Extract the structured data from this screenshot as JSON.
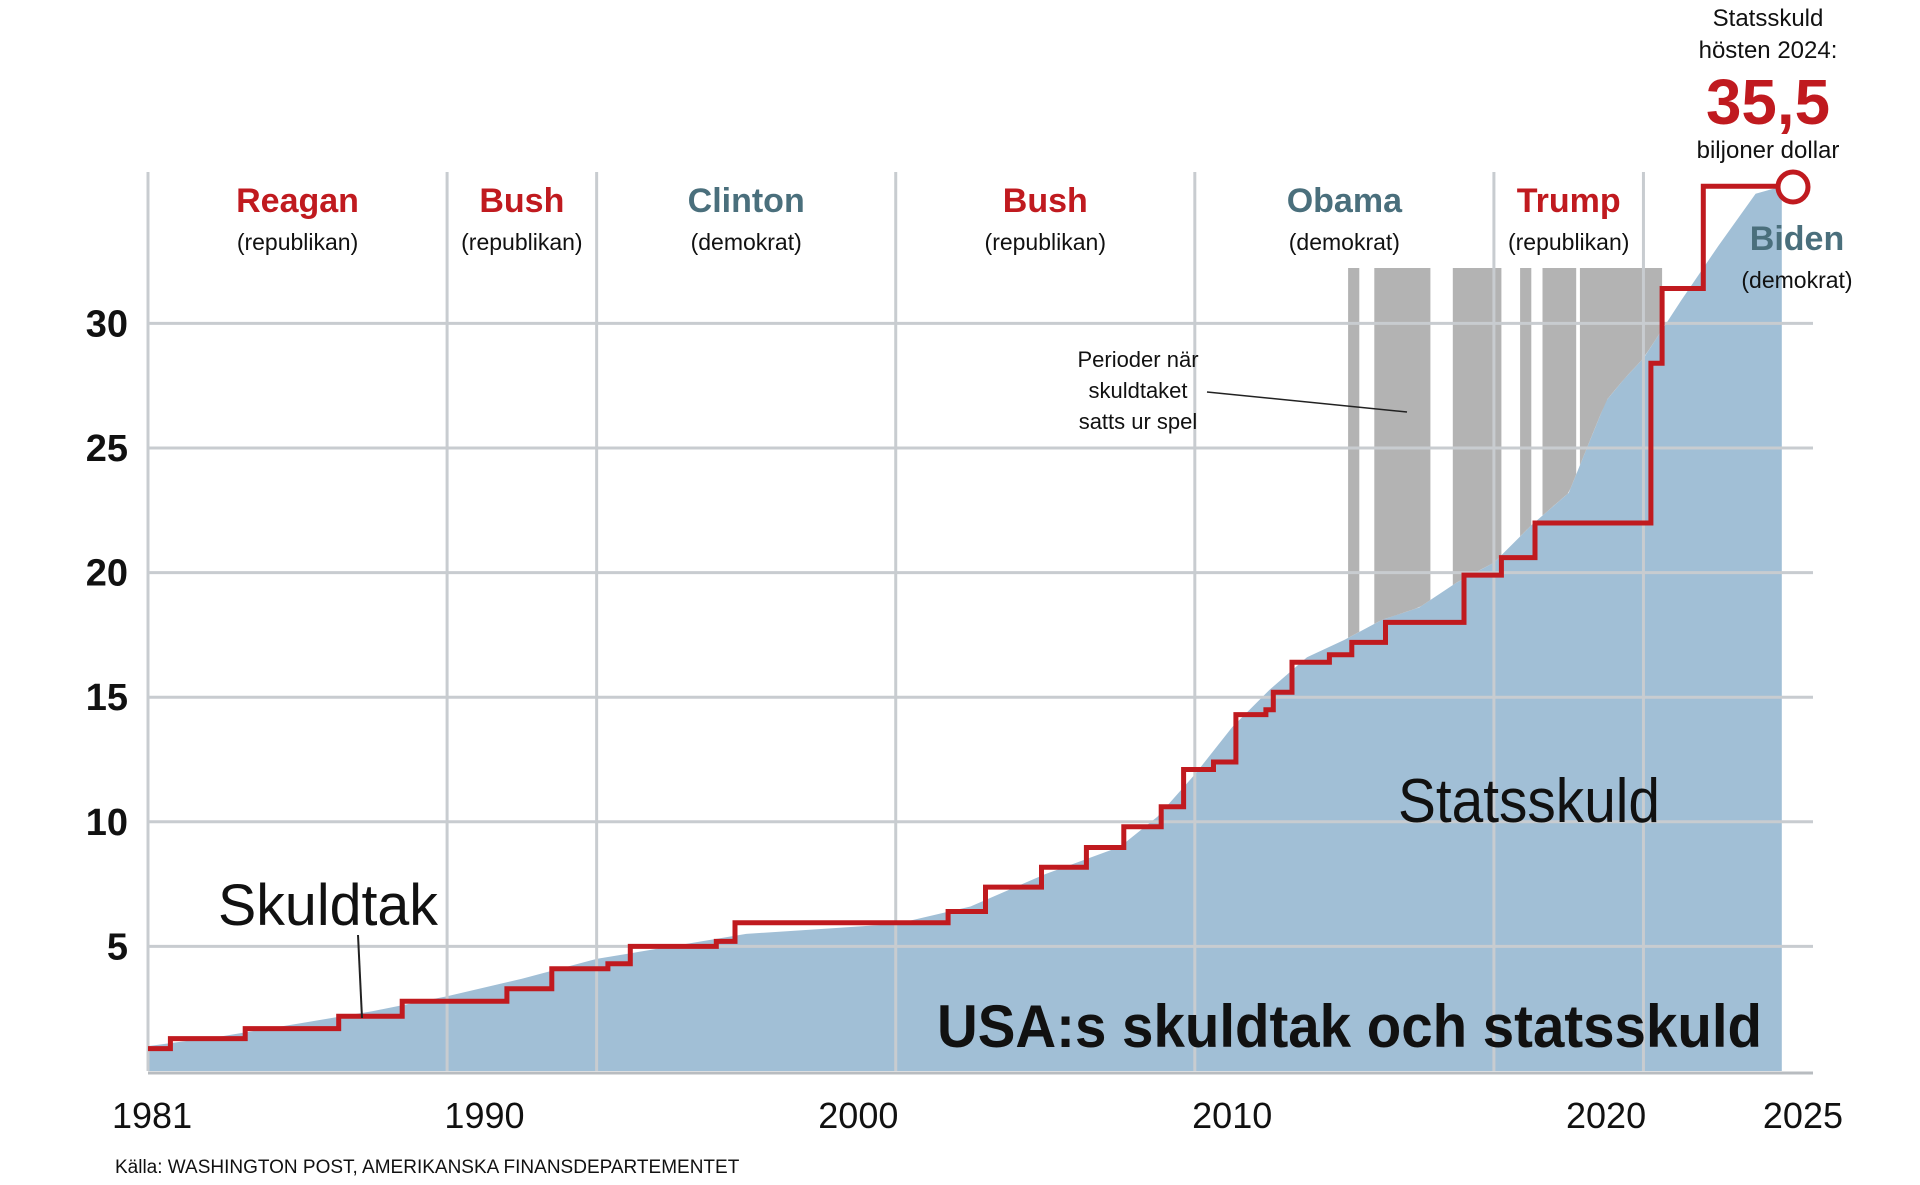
{
  "colors": {
    "republican": "#c01a1f",
    "democrat": "#4a6f7c",
    "debt_area": "#a1bfd6",
    "suspension": "#b3b3b3",
    "ceiling_line": "#c01a1f",
    "grid": "#c8ccd0",
    "text": "#111111"
  },
  "callout": {
    "line1": "Statsskuld",
    "line2": "hösten 2024:",
    "value": "35,5",
    "unit": "biljoner dollar"
  },
  "source": "Källa: WASHINGTON POST, AMERIKANSKA FINANSDEPARTEMENTET",
  "chart_data": {
    "type": "area",
    "title": "USA:s skuldtak och statsskuld",
    "xlabel": "",
    "ylabel": "",
    "xlim": [
      1981,
      2025
    ],
    "ylim": [
      0,
      36
    ],
    "x_ticks": [
      "1981",
      "1990",
      "2000",
      "2010",
      "2020",
      "2025"
    ],
    "x_tick_values": [
      1981,
      1990,
      2000,
      2010,
      2020,
      2025
    ],
    "y_ticks": [
      "5",
      "10",
      "15",
      "20",
      "25",
      "30"
    ],
    "y_tick_values": [
      5,
      10,
      15,
      20,
      25,
      30
    ],
    "grid": true,
    "presidents": [
      {
        "name": "Reagan",
        "party": "(republikan)",
        "start": 1981,
        "end": 1989,
        "side": "republican"
      },
      {
        "name": "Bush",
        "party": "(republikan)",
        "start": 1989,
        "end": 1993,
        "side": "republican"
      },
      {
        "name": "Clinton",
        "party": "(demokrat)",
        "start": 1993,
        "end": 2001,
        "side": "democrat"
      },
      {
        "name": "Bush",
        "party": "(republikan)",
        "start": 2001,
        "end": 2009,
        "side": "republican"
      },
      {
        "name": "Obama",
        "party": "(demokrat)",
        "start": 2009,
        "end": 2017,
        "side": "democrat"
      },
      {
        "name": "Trump",
        "party": "(republikan)",
        "start": 2017,
        "end": 2021,
        "side": "republican"
      },
      {
        "name": "Biden",
        "party": "(demokrat)",
        "start": 2021,
        "end": 2025,
        "side": "democrat"
      }
    ],
    "series": [
      {
        "name": "Statsskuld",
        "type": "area",
        "x": [
          1981,
          1983,
          1985,
          1987,
          1989,
          1991,
          1993,
          1995,
          1997,
          1999,
          2001,
          2003,
          2005,
          2007,
          2008,
          2009,
          2010,
          2011,
          2012,
          2013,
          2014,
          2015,
          2016,
          2017,
          2018,
          2019,
          2020,
          2020.5,
          2021,
          2022,
          2023,
          2024,
          2024.7
        ],
        "values": [
          1.0,
          1.4,
          1.9,
          2.4,
          3.0,
          3.7,
          4.5,
          5.0,
          5.5,
          5.7,
          5.9,
          6.6,
          7.9,
          9.0,
          10.2,
          11.9,
          13.8,
          15.3,
          16.6,
          17.3,
          18.1,
          18.6,
          19.6,
          20.4,
          21.9,
          23.2,
          26.9,
          27.8,
          28.6,
          30.9,
          33.1,
          35.2,
          35.5
        ]
      },
      {
        "name": "Skuldtak",
        "type": "step",
        "x": [
          1981,
          1981.6,
          1983.6,
          1986.1,
          1987.8,
          1990.6,
          1991.8,
          1993.3,
          1993.9,
          1996.2,
          1996.7,
          2002.4,
          2003.4,
          2004.9,
          2006.1,
          2007.1,
          2008.1,
          2008.7,
          2009.5,
          2009.8,
          2010.1,
          2010.9,
          2011.1,
          2011.6,
          2012.6,
          2013.2,
          2014.1,
          2016.2,
          2017.2,
          2018.1,
          2018.9,
          2021.2,
          2021.5,
          2022.6,
          2024.7
        ],
        "values": [
          0.9,
          1.3,
          1.7,
          2.2,
          2.8,
          3.3,
          4.1,
          4.3,
          5.0,
          5.2,
          5.95,
          6.4,
          7.38,
          8.18,
          8.97,
          9.8,
          10.6,
          12.1,
          12.4,
          12.4,
          14.3,
          14.5,
          15.2,
          16.4,
          16.7,
          17.2,
          18.0,
          19.9,
          20.6,
          21.99,
          21.99,
          28.4,
          31.4,
          35.5,
          35.5
        ]
      }
    ],
    "suspension_periods": [
      [
        2013.1,
        2013.4
      ],
      [
        2013.8,
        2015.3
      ],
      [
        2015.9,
        2017.2
      ],
      [
        2017.7,
        2018.0
      ],
      [
        2018.3,
        2019.2
      ],
      [
        2019.3,
        2021.5
      ]
    ],
    "annotations": [
      {
        "text": "Skuldtak"
      },
      {
        "text": "Statsskuld"
      },
      {
        "lines": [
          "Perioder när",
          "skuldtaket",
          "satts ur spel"
        ]
      }
    ]
  }
}
